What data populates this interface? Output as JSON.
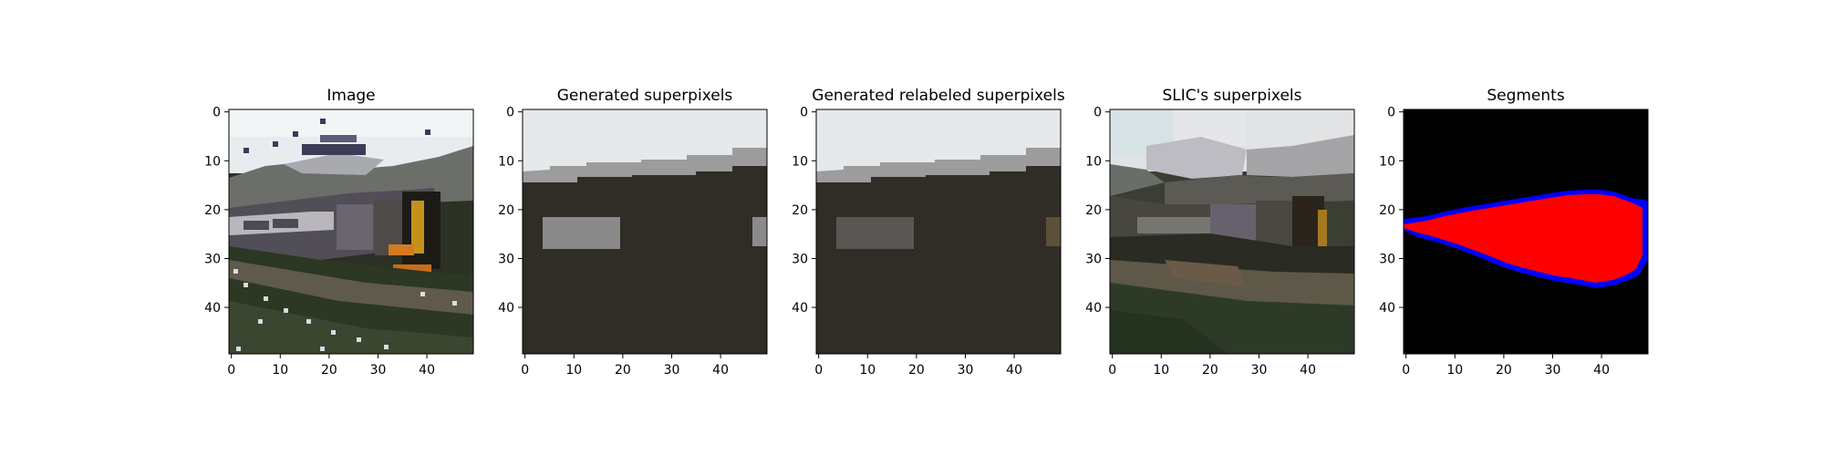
{
  "chart_data": [
    {
      "type": "image",
      "title": "Image",
      "image_size": [
        50,
        50
      ],
      "content": "photo-train",
      "xticks": [
        0,
        10,
        20,
        30,
        40
      ],
      "yticks": [
        0,
        10,
        20,
        30,
        40
      ]
    },
    {
      "type": "image",
      "title": "Generated superpixels",
      "image_size": [
        50,
        50
      ],
      "content": "generated-superpixels",
      "xticks": [
        0,
        10,
        20,
        30,
        40
      ],
      "yticks": [
        0,
        10,
        20,
        30,
        40
      ],
      "colors": {
        "sky": "#e5e9eb",
        "band": "#9c9c9c",
        "ground": "#2f2d25",
        "patch": "#8a8a8a"
      }
    },
    {
      "type": "image",
      "title": "Generated relabeled superpixels",
      "image_size": [
        50,
        50
      ],
      "content": "relabeled-superpixels",
      "xticks": [
        0,
        10,
        20,
        30,
        40
      ],
      "yticks": [
        0,
        10,
        20,
        30,
        40
      ],
      "colors": {
        "sky": "#e5e9eb",
        "band": "#9c9c9c",
        "ground": "#2f2d25",
        "patch": "#595754",
        "edge": "#5c5038"
      }
    },
    {
      "type": "image",
      "title": "SLIC's superpixels",
      "image_size": [
        50,
        50
      ],
      "content": "slic-superpixels",
      "xticks": [
        0,
        10,
        20,
        30,
        40
      ],
      "yticks": [
        0,
        10,
        20,
        30,
        40
      ]
    },
    {
      "type": "image",
      "title": "Segments",
      "image_size": [
        50,
        50
      ],
      "content": "segments",
      "xticks": [
        0,
        10,
        20,
        30,
        40
      ],
      "yticks": [
        0,
        10,
        20,
        30,
        40
      ],
      "colors": {
        "background": "#000000",
        "interior": "#ff0000",
        "border": "#0000ff"
      }
    }
  ]
}
